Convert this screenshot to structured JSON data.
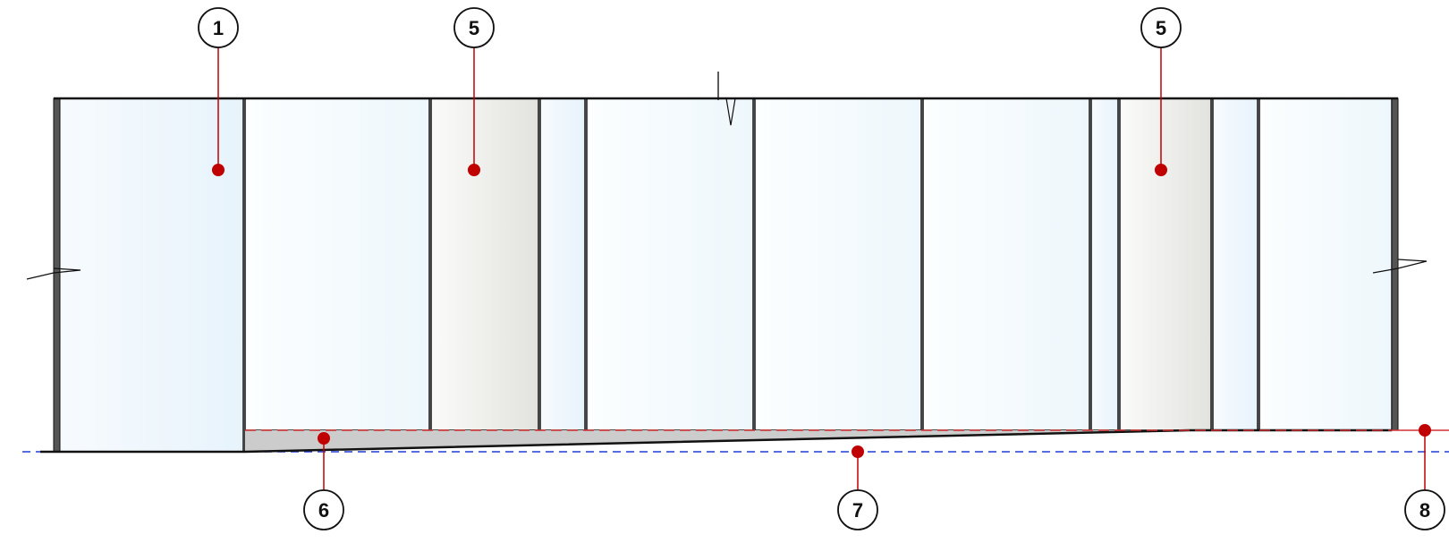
{
  "colors": {
    "leader": "#c00000",
    "dot": "#c00000",
    "outline": "#111111",
    "post": "#555555",
    "glass_light": "#f2f9fd",
    "glass_blue": "#eaf5fc",
    "opaque_light": "#fafaf8",
    "opaque_dark": "#e4e4e1",
    "sill": "#cccccc",
    "blue_dash": "#1f3fd6",
    "red_dash": "#d03030"
  },
  "callouts": {
    "c1": {
      "number": "1"
    },
    "c5a": {
      "number": "5"
    },
    "c5b": {
      "number": "5"
    },
    "c6": {
      "number": "6"
    },
    "c7": {
      "number": "7"
    },
    "c8": {
      "number": "8"
    }
  }
}
